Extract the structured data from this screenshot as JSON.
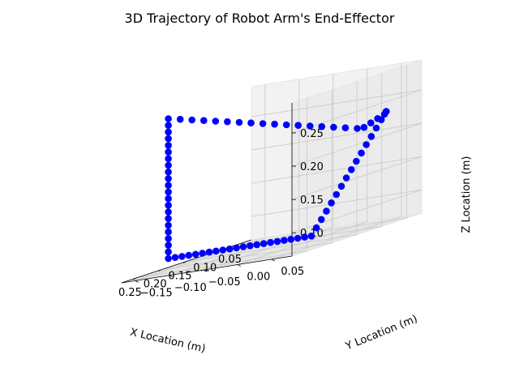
{
  "chart_data": {
    "type": "scatter",
    "projection": "3d",
    "title": "3D Trajectory of Robot Arm's End-Effector",
    "xlabel": "X Location (m)",
    "ylabel": "Y Location (m)",
    "zlabel": "Z Location (m)",
    "xlim": [
      0.02,
      0.28
    ],
    "ylim": [
      -0.17,
      0.08
    ],
    "zlim": [
      0.065,
      0.295
    ],
    "xticks": [
      "0.05",
      "0.10",
      "0.15",
      "0.20",
      "0.25"
    ],
    "yticks": [
      "−0.15",
      "−0.10",
      "−0.05",
      "0.00",
      "0.05"
    ],
    "zticks": [
      "0.10",
      "0.15",
      "0.20",
      "0.25"
    ],
    "grid": true,
    "marker_color": "#0000ff",
    "series": [
      {
        "points": [
          [
            0.05,
            0.05,
            0.23
          ],
          [
            0.06,
            0.05,
            0.22
          ],
          [
            0.07,
            0.05,
            0.21
          ],
          [
            0.08,
            0.05,
            0.2
          ],
          [
            0.09,
            0.05,
            0.19
          ],
          [
            0.1,
            0.05,
            0.18
          ],
          [
            0.11,
            0.05,
            0.17
          ],
          [
            0.12,
            0.05,
            0.16
          ],
          [
            0.13,
            0.05,
            0.15
          ],
          [
            0.14,
            0.05,
            0.14
          ],
          [
            0.15,
            0.05,
            0.13
          ],
          [
            0.16,
            0.05,
            0.12
          ],
          [
            0.17,
            0.05,
            0.11
          ],
          [
            0.18,
            0.05,
            0.1
          ],
          [
            0.19,
            0.05,
            0.09
          ],
          [
            0.2,
            0.05,
            0.08
          ],
          [
            0.2,
            0.04,
            0.08
          ],
          [
            0.2,
            0.03,
            0.08
          ],
          [
            0.2,
            0.02,
            0.08
          ],
          [
            0.2,
            0.01,
            0.08
          ],
          [
            0.2,
            0.0,
            0.08
          ],
          [
            0.2,
            -0.01,
            0.08
          ],
          [
            0.2,
            -0.02,
            0.08
          ],
          [
            0.2,
            -0.03,
            0.08
          ],
          [
            0.2,
            -0.04,
            0.08
          ],
          [
            0.2,
            -0.05,
            0.08
          ],
          [
            0.2,
            -0.06,
            0.08
          ],
          [
            0.2,
            -0.07,
            0.08
          ],
          [
            0.2,
            -0.08,
            0.08
          ],
          [
            0.2,
            -0.09,
            0.08
          ],
          [
            0.2,
            -0.1,
            0.08
          ],
          [
            0.2,
            -0.11,
            0.08
          ],
          [
            0.2,
            -0.12,
            0.08
          ],
          [
            0.2,
            -0.13,
            0.08
          ],
          [
            0.2,
            -0.14,
            0.08
          ],
          [
            0.2,
            -0.15,
            0.08
          ],
          [
            0.2,
            -0.16,
            0.08
          ],
          [
            0.2,
            -0.16,
            0.09
          ],
          [
            0.2,
            -0.16,
            0.1
          ],
          [
            0.2,
            -0.16,
            0.11
          ],
          [
            0.2,
            -0.16,
            0.12
          ],
          [
            0.2,
            -0.16,
            0.13
          ],
          [
            0.2,
            -0.16,
            0.14
          ],
          [
            0.2,
            -0.16,
            0.15
          ],
          [
            0.2,
            -0.16,
            0.16
          ],
          [
            0.2,
            -0.16,
            0.17
          ],
          [
            0.2,
            -0.16,
            0.18
          ],
          [
            0.2,
            -0.16,
            0.19
          ],
          [
            0.2,
            -0.16,
            0.2
          ],
          [
            0.2,
            -0.16,
            0.21
          ],
          [
            0.2,
            -0.16,
            0.22
          ],
          [
            0.2,
            -0.16,
            0.23
          ],
          [
            0.2,
            -0.16,
            0.24
          ],
          [
            0.2,
            -0.16,
            0.25
          ],
          [
            0.2,
            -0.16,
            0.26
          ],
          [
            0.2,
            -0.16,
            0.27
          ],
          [
            0.2,
            -0.16,
            0.28
          ],
          [
            0.2,
            -0.16,
            0.29
          ],
          [
            0.19,
            -0.15,
            0.285
          ],
          [
            0.18,
            -0.14,
            0.28
          ],
          [
            0.17,
            -0.13,
            0.275
          ],
          [
            0.16,
            -0.12,
            0.27
          ],
          [
            0.15,
            -0.11,
            0.265
          ],
          [
            0.14,
            -0.1,
            0.26
          ],
          [
            0.13,
            -0.09,
            0.255
          ],
          [
            0.12,
            -0.08,
            0.25
          ],
          [
            0.11,
            -0.07,
            0.245
          ],
          [
            0.1,
            -0.06,
            0.24
          ],
          [
            0.09,
            -0.05,
            0.235
          ],
          [
            0.08,
            -0.04,
            0.23
          ],
          [
            0.07,
            -0.03,
            0.225
          ],
          [
            0.06,
            -0.02,
            0.22
          ],
          [
            0.05,
            -0.01,
            0.215
          ],
          [
            0.04,
            0.0,
            0.21
          ],
          [
            0.04,
            0.01,
            0.21
          ],
          [
            0.04,
            0.02,
            0.215
          ],
          [
            0.04,
            0.03,
            0.22
          ],
          [
            0.04,
            0.04,
            0.225
          ],
          [
            0.05,
            0.05,
            0.23
          ]
        ]
      }
    ]
  }
}
